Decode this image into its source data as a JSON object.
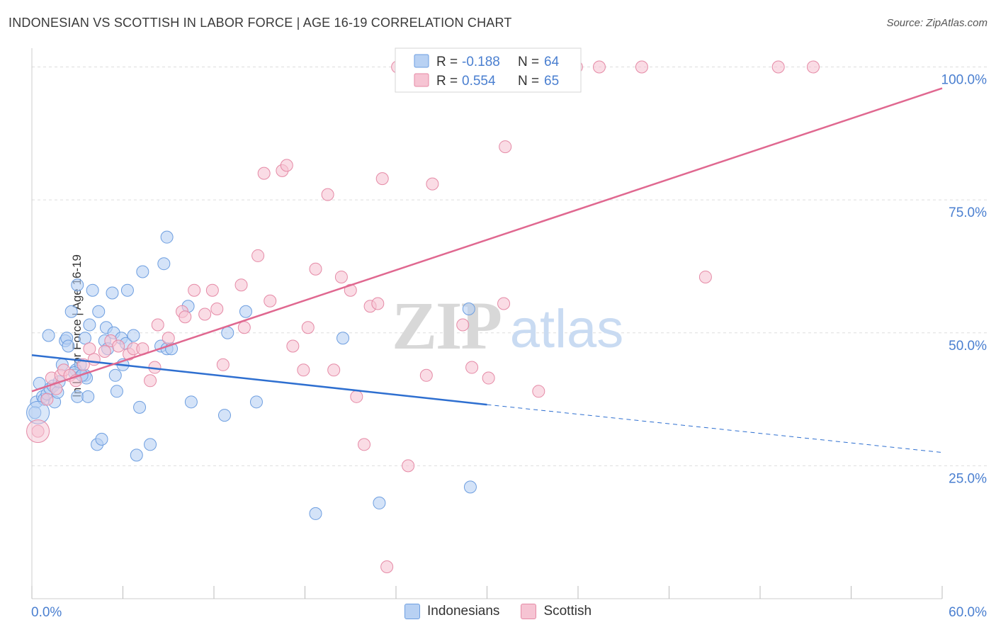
{
  "title": "INDONESIAN VS SCOTTISH IN LABOR FORCE | AGE 16-19 CORRELATION CHART",
  "source": "Source: ZipAtlas.com",
  "watermark": {
    "zip": "ZIP",
    "atlas": "atlas"
  },
  "colors": {
    "blue_fill": "#b8d1f3",
    "blue_stroke": "#6d9ee0",
    "blue_line": "#2e6fd0",
    "pink_fill": "#f6c4d3",
    "pink_stroke": "#e58aa6",
    "pink_line": "#e06890",
    "axis_text": "#4a7fd0",
    "grid": "#dddddd"
  },
  "legend_stats": {
    "r_label": "R =",
    "n_label": "N =",
    "rows": [
      {
        "r": "-0.188",
        "n": "64"
      },
      {
        "r": "0.554",
        "n": "65"
      }
    ]
  },
  "chart_data": {
    "type": "scatter",
    "xlabel": "",
    "ylabel": "In Labor Force | Age 16-19",
    "xlim": [
      0,
      60
    ],
    "ylim": [
      0,
      103
    ],
    "x_tick_labels": [
      "0.0%",
      "60.0%"
    ],
    "y_ticks": [
      25,
      50,
      75,
      100
    ],
    "y_tick_labels": [
      "25.0%",
      "50.0%",
      "75.0%",
      "100.0%"
    ],
    "grid": true,
    "legend_position": "bottom",
    "series": [
      {
        "name": "Indonesians",
        "trend": {
          "x0": 0,
          "y0": 45.8,
          "x1": 30,
          "y1": 36.5,
          "dash_to_x": 60,
          "dash_to_y": 27.5
        },
        "points": [
          [
            0.3,
            37
          ],
          [
            0.5,
            40.5
          ],
          [
            0.7,
            38
          ],
          [
            0.8,
            37.5
          ],
          [
            1.0,
            38.5
          ],
          [
            1.1,
            49.5
          ],
          [
            1.2,
            39.5
          ],
          [
            1.4,
            40
          ],
          [
            1.5,
            37
          ],
          [
            1.7,
            38.8
          ],
          [
            2.0,
            44
          ],
          [
            2.2,
            48.5
          ],
          [
            2.3,
            49
          ],
          [
            2.4,
            47.5
          ],
          [
            2.6,
            54
          ],
          [
            2.9,
            43
          ],
          [
            3.0,
            38
          ],
          [
            3.0,
            59
          ],
          [
            3.2,
            44
          ],
          [
            3.5,
            42
          ],
          [
            3.5,
            49
          ],
          [
            3.6,
            41.5
          ],
          [
            3.7,
            38
          ],
          [
            3.8,
            51.5
          ],
          [
            4.0,
            58
          ],
          [
            4.3,
            29
          ],
          [
            4.4,
            54
          ],
          [
            4.6,
            30
          ],
          [
            4.8,
            48.5
          ],
          [
            4.9,
            51
          ],
          [
            5.0,
            47
          ],
          [
            5.3,
            57.5
          ],
          [
            5.4,
            50
          ],
          [
            5.5,
            42
          ],
          [
            5.6,
            39
          ],
          [
            5.9,
            49
          ],
          [
            6.0,
            44
          ],
          [
            6.2,
            48
          ],
          [
            6.3,
            58
          ],
          [
            6.7,
            49.5
          ],
          [
            6.9,
            27
          ],
          [
            7.1,
            36
          ],
          [
            7.3,
            61.5
          ],
          [
            7.8,
            29
          ],
          [
            8.5,
            47.5
          ],
          [
            8.7,
            63
          ],
          [
            8.9,
            68
          ],
          [
            8.9,
            47
          ],
          [
            9.2,
            47
          ],
          [
            10.3,
            55
          ],
          [
            10.5,
            37
          ],
          [
            12.7,
            34.5
          ],
          [
            12.9,
            50
          ],
          [
            14.1,
            54
          ],
          [
            14.8,
            37
          ],
          [
            18.7,
            16
          ],
          [
            20.5,
            49
          ],
          [
            22.9,
            18
          ],
          [
            28.8,
            54.5
          ],
          [
            28.9,
            21
          ],
          [
            0.2,
            35
          ],
          [
            1.8,
            40.8
          ],
          [
            2.8,
            42.5
          ],
          [
            3.3,
            42
          ]
        ]
      },
      {
        "name": "Scottish",
        "trend": {
          "x0": 0,
          "y0": 39,
          "x1": 60,
          "y1": 96
        },
        "points": [
          [
            0.4,
            31.5
          ],
          [
            1.0,
            37.5
          ],
          [
            1.3,
            41.5
          ],
          [
            1.6,
            39.5
          ],
          [
            1.9,
            42
          ],
          [
            2.1,
            43
          ],
          [
            2.5,
            42
          ],
          [
            2.9,
            41
          ],
          [
            3.4,
            44
          ],
          [
            3.8,
            47
          ],
          [
            4.1,
            45
          ],
          [
            4.8,
            46.5
          ],
          [
            5.2,
            48.5
          ],
          [
            5.7,
            47.5
          ],
          [
            6.4,
            46
          ],
          [
            6.7,
            47
          ],
          [
            7.3,
            47
          ],
          [
            7.8,
            41
          ],
          [
            8.1,
            43.5
          ],
          [
            8.3,
            51.5
          ],
          [
            9.0,
            49
          ],
          [
            9.9,
            54
          ],
          [
            10.1,
            53
          ],
          [
            10.7,
            58
          ],
          [
            11.4,
            53.5
          ],
          [
            11.9,
            58
          ],
          [
            12.2,
            54.5
          ],
          [
            12.6,
            44
          ],
          [
            13.8,
            59
          ],
          [
            14.0,
            51
          ],
          [
            14.9,
            64.5
          ],
          [
            15.3,
            80
          ],
          [
            15.7,
            56
          ],
          [
            16.5,
            80.5
          ],
          [
            16.8,
            81.5
          ],
          [
            17.2,
            47.5
          ],
          [
            17.9,
            43
          ],
          [
            18.2,
            51
          ],
          [
            18.7,
            62
          ],
          [
            19.5,
            76
          ],
          [
            19.9,
            43
          ],
          [
            20.4,
            60.5
          ],
          [
            21.0,
            58
          ],
          [
            21.4,
            38
          ],
          [
            21.9,
            29
          ],
          [
            22.3,
            55
          ],
          [
            22.8,
            55.5
          ],
          [
            23.1,
            79
          ],
          [
            23.4,
            6
          ],
          [
            24.8,
            25
          ],
          [
            26.0,
            42
          ],
          [
            26.4,
            78
          ],
          [
            28.4,
            51.5
          ],
          [
            29.0,
            43.5
          ],
          [
            30.1,
            41.5
          ],
          [
            31.1,
            55.5
          ],
          [
            31.2,
            85
          ],
          [
            33.4,
            39
          ],
          [
            35.9,
            100
          ],
          [
            37.4,
            100
          ],
          [
            40.2,
            100
          ],
          [
            44.4,
            60.5
          ],
          [
            49.2,
            100
          ],
          [
            51.5,
            100
          ],
          [
            24.1,
            100
          ]
        ]
      }
    ]
  }
}
